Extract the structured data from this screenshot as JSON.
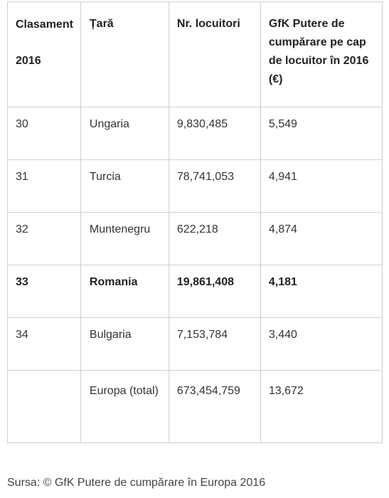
{
  "table": {
    "headers": [
      "Clasament 2016",
      "Țară",
      "Nr. locuitori",
      "GfK Putere de cumpărare pe cap de locuitor în 2016 (€)"
    ],
    "rows": [
      {
        "rank": "30",
        "country": "Ungaria",
        "population": "9,830,485",
        "purchasing_power": "5,549"
      },
      {
        "rank": "31",
        "country": "Turcia",
        "population": "78,741,053",
        "purchasing_power": "4,941"
      },
      {
        "rank": "32",
        "country": "Muntenegru",
        "population": "622,218",
        "purchasing_power": "4,874"
      },
      {
        "rank": "33",
        "country": "Romania",
        "population": "19,861,408",
        "purchasing_power": "4,181"
      },
      {
        "rank": "34",
        "country": "Bulgaria",
        "population": "7,153,784",
        "purchasing_power": "3,440"
      },
      {
        "rank": "",
        "country": "Europa (total)",
        "population": "673,454,759",
        "purchasing_power": "13,672"
      }
    ]
  },
  "caption": "Sursa: © GfK Putere de cumpărare în Europa 2016"
}
